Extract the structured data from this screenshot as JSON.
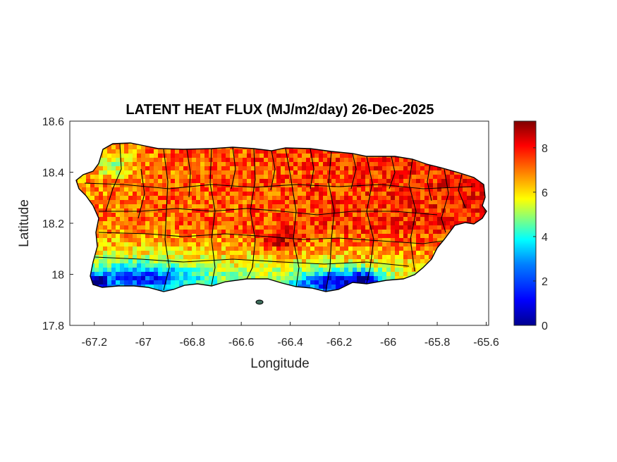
{
  "title": "LATENT HEAT FLUX (MJ/m2/day) 26-Dec-2025",
  "xlabel": "Longitude",
  "ylabel": "Latitude",
  "x_ticks": [
    "-67.2",
    "-67",
    "-66.8",
    "-66.6",
    "-66.4",
    "-66.2",
    "-66",
    "-65.8",
    "-65.6"
  ],
  "y_ticks": [
    "18.6",
    "18.4",
    "18.2",
    "18",
    "17.8"
  ],
  "colorbar_ticks": [
    "8",
    "6",
    "4",
    "2",
    "0"
  ],
  "colormap": "jet",
  "colormap_stops": [
    "#00008f",
    "#0000ff",
    "#0080ff",
    "#00ffff",
    "#80ff80",
    "#ffff00",
    "#ff8000",
    "#ff0000",
    "#800000"
  ],
  "chart_data": {
    "type": "heatmap",
    "title": "LATENT HEAT FLUX (MJ/m2/day) 26-Dec-2025",
    "xlabel": "Longitude",
    "ylabel": "Latitude",
    "xlim": [
      -67.3,
      -65.59
    ],
    "ylim": [
      17.8,
      18.6
    ],
    "clim": [
      0,
      9.2
    ],
    "colorbar_ticks": [
      0,
      2,
      4,
      6,
      8
    ],
    "region": "Puerto Rico (main island, municipal boundaries)",
    "summary": {
      "north_and_interior": "6-9 (orange to dark red)",
      "southwest_coast": "2-4 (cyan to blue)",
      "south_central_coast": "1-3 (blue)",
      "east": "7-9 (red)"
    }
  }
}
